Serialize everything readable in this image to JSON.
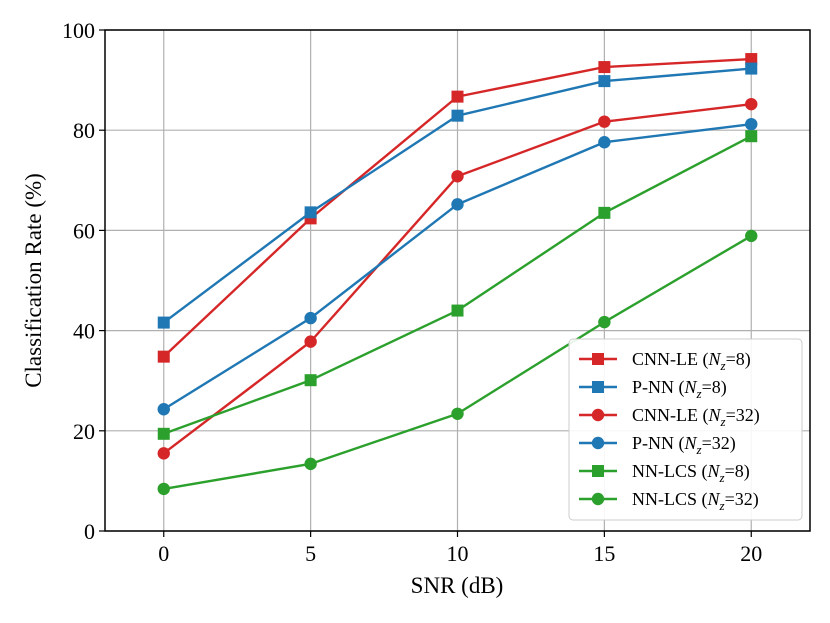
{
  "chart_data": {
    "type": "line",
    "title": "",
    "xlabel": "SNR (dB)",
    "ylabel": "Classification Rate (%)",
    "x": [
      0,
      5,
      10,
      15,
      20
    ],
    "x_ticks": [
      "0",
      "5",
      "10",
      "15",
      "20"
    ],
    "y_ticks": [
      "0",
      "20",
      "40",
      "60",
      "80",
      "100"
    ],
    "xlim": [
      -2,
      22
    ],
    "ylim": [
      0,
      100
    ],
    "grid": true,
    "legend_position": "lower-right",
    "series": [
      {
        "name_main": "CNN-LE (",
        "name_var": "N",
        "name_sub": "z",
        "name_tail": "=8)",
        "color": "#d62728",
        "marker": "square",
        "values": [
          34.8,
          62.4,
          86.7,
          92.6,
          94.2
        ]
      },
      {
        "name_main": "P-NN (",
        "name_var": "N",
        "name_sub": "z",
        "name_tail": "=8)",
        "color": "#1f77b4",
        "marker": "square",
        "values": [
          41.6,
          63.6,
          82.9,
          89.8,
          92.3
        ]
      },
      {
        "name_main": "CNN-LE (",
        "name_var": "N",
        "name_sub": "z",
        "name_tail": "=32)",
        "color": "#d62728",
        "marker": "circle",
        "values": [
          15.5,
          37.8,
          70.8,
          81.7,
          85.2
        ]
      },
      {
        "name_main": "P-NN (",
        "name_var": "N",
        "name_sub": "z",
        "name_tail": "=32)",
        "color": "#1f77b4",
        "marker": "circle",
        "values": [
          24.3,
          42.5,
          65.2,
          77.6,
          81.2
        ]
      },
      {
        "name_main": "NN-LCS (",
        "name_var": "N",
        "name_sub": "z",
        "name_tail": "=8)",
        "color": "#2ca02c",
        "marker": "square",
        "values": [
          19.4,
          30.1,
          44.0,
          63.5,
          78.8
        ]
      },
      {
        "name_main": "NN-LCS (",
        "name_var": "N",
        "name_sub": "z",
        "name_tail": "=32)",
        "color": "#2ca02c",
        "marker": "circle",
        "values": [
          8.4,
          13.4,
          23.4,
          41.7,
          58.9
        ]
      }
    ]
  }
}
